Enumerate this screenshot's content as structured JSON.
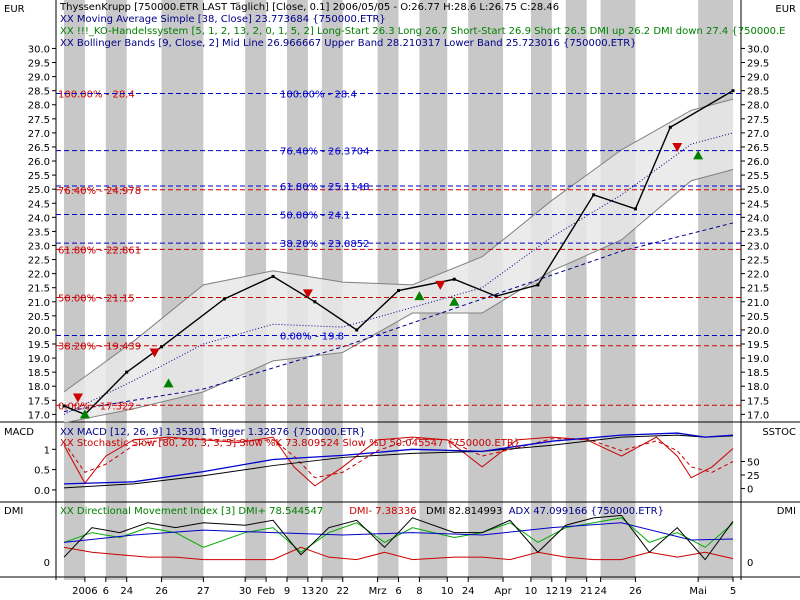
{
  "chart_data": {
    "type": "line",
    "instrument_line": "ThyssenKrupp [750000.ETR LAST Täglich] [Close, 0.1] 2006/05/05 - O:26.77 H:28.6 L:26.75 C:28.46",
    "currency_left": "EUR",
    "currency_right": "EUR",
    "price_panel": {
      "ylim": [
        16.8,
        30.3
      ],
      "y_ticks": [
        "17.0",
        "17.5",
        "18.0",
        "18.5",
        "19.0",
        "19.5",
        "20.0",
        "20.5",
        "21.0",
        "21.5",
        "22.0",
        "22.5",
        "23.0",
        "23.5",
        "24.0",
        "24.5",
        "25.0",
        "25.5",
        "26.0",
        "26.5",
        "27.0",
        "27.5",
        "28.0",
        "28.5",
        "29.0",
        "29.5",
        "30.0"
      ],
      "legend": [
        {
          "text": "XX Moving Average Simple [38, Close] 23.773684 {750000.ETR}",
          "color": "#00008b"
        },
        {
          "text": "XX !!!_KO-Handelssystem [5, 1, 2, 13, 2, 0, 1, 5, 2] Long-Start 26.3 Long 26.7 Short-Start 26.9 Short 26.5 DMI up 26.2 DMI down 27.4 {750000.E",
          "color": "#008000"
        },
        {
          "text": "XX Bollinger Bands [9, Close, 2] Mid Line 26.966667 Upper Band 28.210317 Lower Band 25.723016 {750000.ETR}",
          "color": "#00008b"
        }
      ],
      "close_series": {
        "name": "ThyssenKrupp",
        "x": [
          0,
          3,
          9,
          14,
          23,
          30,
          36,
          42,
          48,
          56,
          62,
          68,
          76,
          82,
          87,
          96
        ],
        "y": [
          17.3,
          17.0,
          18.5,
          19.4,
          21.1,
          21.9,
          21.0,
          20.0,
          21.4,
          21.8,
          21.2,
          21.6,
          24.8,
          24.3,
          27.2,
          28.5
        ]
      },
      "moving_average": {
        "x": [
          0,
          20,
          40,
          60,
          80,
          96
        ],
        "y": [
          17.1,
          17.9,
          19.4,
          21.1,
          22.8,
          23.8
        ]
      },
      "bollinger_mid": {
        "x": [
          0,
          10,
          20,
          30,
          40,
          50,
          60,
          70,
          80,
          90,
          96
        ],
        "y": [
          17.0,
          18.2,
          19.5,
          20.2,
          20.1,
          20.8,
          21.5,
          23.3,
          24.8,
          26.6,
          27.0
        ]
      },
      "bollinger_upper": {
        "x": [
          0,
          10,
          20,
          30,
          40,
          50,
          60,
          70,
          80,
          90,
          96
        ],
        "y": [
          17.8,
          19.6,
          21.6,
          22.1,
          21.7,
          21.6,
          22.6,
          24.6,
          26.4,
          27.8,
          28.2
        ]
      },
      "bollinger_lower": {
        "x": [
          0,
          10,
          20,
          30,
          40,
          50,
          60,
          70,
          80,
          90,
          96
        ],
        "y": [
          16.7,
          17.2,
          17.8,
          18.9,
          19.2,
          20.6,
          20.6,
          22.1,
          23.2,
          25.3,
          25.7
        ]
      },
      "fib_set_1": {
        "color": "#cc0000",
        "levels": [
          {
            "label": "100.00% - 28.4",
            "value": 28.4
          },
          {
            "label": "76.40% - 24.978",
            "value": 24.978
          },
          {
            "label": "61.80% - 22.861",
            "value": 22.861
          },
          {
            "label": "50.00% - 21.15",
            "value": 21.15
          },
          {
            "label": "38.20% - 19.439",
            "value": 19.439
          },
          {
            "label": "0.00% - 17.322",
            "value": 17.322
          }
        ]
      },
      "fib_set_2": {
        "color": "#0000cc",
        "levels": [
          {
            "label": "100.00% - 28.4",
            "value": 28.4
          },
          {
            "label": "76.40% - 26.3704",
            "value": 26.3704
          },
          {
            "label": "61.80% - 25.1148",
            "value": 25.1148
          },
          {
            "label": "50.00% - 24.1",
            "value": 24.1
          },
          {
            "label": "38.20% - 23.0852",
            "value": 23.0852
          },
          {
            "label": "0.00% - 19.8",
            "value": 19.8
          }
        ]
      },
      "signals": [
        {
          "x": 2,
          "y": 17.6,
          "kind": "short"
        },
        {
          "x": 3,
          "y": 17.0,
          "kind": "long"
        },
        {
          "x": 13,
          "y": 19.2,
          "kind": "short"
        },
        {
          "x": 15,
          "y": 18.1,
          "kind": "long"
        },
        {
          "x": 35,
          "y": 21.3,
          "kind": "short"
        },
        {
          "x": 51,
          "y": 21.2,
          "kind": "long"
        },
        {
          "x": 54,
          "y": 21.6,
          "kind": "short"
        },
        {
          "x": 56,
          "y": 21.0,
          "kind": "long"
        },
        {
          "x": 88,
          "y": 26.5,
          "kind": "short"
        },
        {
          "x": 91,
          "y": 26.2,
          "kind": "long"
        }
      ]
    },
    "macd_panel": {
      "label_left": "MACD",
      "label_right": "SSTOC",
      "legend": [
        {
          "text": "XX MACD [12, 26, 9] 1.35301 Trigger 1.32876 {750000.ETR}",
          "color": "#00008b"
        },
        {
          "text": "XX Stochastic Slow [80, 20, 3, 3, 5] Slow %K 73.809524 Slow %D 50.045547 {750000.ETR}",
          "color": "#cc0000"
        }
      ],
      "left_ticks": [
        "0.0",
        "0.5",
        "1"
      ],
      "ylim_left": [
        -0.1,
        1.5
      ],
      "right_ticks": [
        "50",
        "25",
        "0"
      ],
      "ylim_right": [
        -10,
        110
      ],
      "macd": {
        "x": [
          0,
          10,
          20,
          30,
          40,
          50,
          60,
          70,
          80,
          88,
          92,
          96
        ],
        "y": [
          0.15,
          0.2,
          0.45,
          0.75,
          0.85,
          1.0,
          0.95,
          1.2,
          1.35,
          1.4,
          1.3,
          1.35
        ]
      },
      "trigger": {
        "x": [
          0,
          10,
          20,
          30,
          40,
          50,
          60,
          70,
          80,
          88,
          92,
          96
        ],
        "y": [
          0.05,
          0.15,
          0.35,
          0.6,
          0.8,
          0.9,
          0.95,
          1.1,
          1.3,
          1.35,
          1.3,
          1.33
        ]
      },
      "stoch_k": {
        "x": [
          0,
          3,
          6,
          10,
          15,
          20,
          25,
          30,
          33,
          36,
          40,
          45,
          50,
          55,
          60,
          65,
          70,
          75,
          80,
          85,
          88,
          90,
          93,
          96
        ],
        "y": [
          80,
          10,
          60,
          90,
          95,
          90,
          85,
          95,
          40,
          5,
          40,
          90,
          95,
          90,
          40,
          90,
          95,
          90,
          60,
          95,
          60,
          20,
          40,
          74
        ]
      },
      "stoch_d": {
        "x": [
          0,
          3,
          6,
          10,
          15,
          20,
          25,
          30,
          33,
          36,
          40,
          45,
          50,
          55,
          60,
          65,
          70,
          75,
          80,
          85,
          88,
          90,
          93,
          96
        ],
        "y": [
          85,
          30,
          45,
          80,
          92,
          92,
          88,
          90,
          60,
          20,
          30,
          70,
          92,
          90,
          60,
          75,
          92,
          92,
          70,
          88,
          70,
          40,
          30,
          50
        ]
      }
    },
    "dmi_panel": {
      "label_left": "DMI",
      "label_right": "DMI",
      "legend": [
        {
          "text": "XX Directional Movement Index [3] DMI+ 78.544547",
          "color": "#008000"
        },
        {
          "text": "DMI- 7.38336",
          "color": "#cc0000"
        },
        {
          "text": "DMI 82.814993",
          "color": "#000000"
        },
        {
          "text": "ADX 47.099166 {750000.ETR}",
          "color": "#00008b"
        }
      ],
      "left_ticks": [
        "0"
      ],
      "right_ticks": [
        "0"
      ],
      "ylim": [
        -10,
        110
      ],
      "dmi_plus": {
        "x": [
          0,
          4,
          8,
          12,
          16,
          20,
          26,
          30,
          34,
          38,
          42,
          46,
          50,
          56,
          60,
          64,
          68,
          72,
          76,
          80,
          84,
          88,
          92,
          96
        ],
        "y": [
          40,
          60,
          50,
          70,
          60,
          30,
          60,
          70,
          20,
          60,
          80,
          40,
          70,
          50,
          60,
          80,
          40,
          70,
          80,
          90,
          40,
          60,
          30,
          79
        ]
      },
      "dmi_minus": {
        "x": [
          0,
          4,
          8,
          12,
          16,
          20,
          26,
          30,
          34,
          38,
          42,
          46,
          50,
          56,
          60,
          64,
          68,
          72,
          76,
          80,
          84,
          88,
          92,
          96
        ],
        "y": [
          30,
          20,
          15,
          10,
          10,
          5,
          5,
          5,
          30,
          10,
          5,
          20,
          5,
          10,
          10,
          5,
          20,
          10,
          5,
          5,
          20,
          10,
          20,
          7
        ]
      },
      "dmi": {
        "x": [
          0,
          4,
          8,
          12,
          16,
          20,
          26,
          30,
          34,
          38,
          42,
          46,
          50,
          56,
          60,
          64,
          68,
          72,
          76,
          80,
          84,
          88,
          92,
          96
        ],
        "y": [
          10,
          70,
          60,
          80,
          70,
          80,
          75,
          85,
          15,
          70,
          85,
          30,
          90,
          60,
          60,
          85,
          20,
          75,
          90,
          95,
          20,
          70,
          5,
          83
        ]
      },
      "adx": {
        "x": [
          0,
          10,
          20,
          30,
          40,
          50,
          60,
          70,
          80,
          90,
          96
        ],
        "y": [
          40,
          55,
          65,
          60,
          55,
          60,
          55,
          70,
          80,
          45,
          47
        ]
      }
    },
    "x_axis": {
      "count": 97,
      "labels": [
        {
          "i": 3,
          "text": "2006"
        },
        {
          "i": 6,
          "text": "6"
        },
        {
          "i": 9,
          "text": "24"
        },
        {
          "i": 14,
          "text": "26"
        },
        {
          "i": 20,
          "text": "27"
        },
        {
          "i": 26,
          "text": "30"
        },
        {
          "i": 29,
          "text": "Feb"
        },
        {
          "i": 32,
          "text": "9"
        },
        {
          "i": 35,
          "text": "13"
        },
        {
          "i": 37,
          "text": "20"
        },
        {
          "i": 40,
          "text": "22"
        },
        {
          "i": 45,
          "text": "Mrz"
        },
        {
          "i": 48,
          "text": "6"
        },
        {
          "i": 51,
          "text": "8"
        },
        {
          "i": 55,
          "text": "10"
        },
        {
          "i": 58,
          "text": "24"
        },
        {
          "i": 63,
          "text": "Apr"
        },
        {
          "i": 67,
          "text": "10"
        },
        {
          "i": 70,
          "text": "12"
        },
        {
          "i": 72,
          "text": "19"
        },
        {
          "i": 75,
          "text": "21"
        },
        {
          "i": 77,
          "text": "24"
        },
        {
          "i": 82,
          "text": "26"
        },
        {
          "i": 91,
          "text": "Mai"
        },
        {
          "i": 96,
          "text": "5"
        }
      ]
    },
    "colors": {
      "price": "#000000",
      "price_marker": "#00aa00",
      "ma": "#00008b",
      "boll_line": "#808080",
      "boll_fill": "#e8e8e8",
      "stripe": "#c8c8c8",
      "macd": "#0000cc",
      "trigger": "#000000",
      "stoch_k": "#cc0000",
      "stoch_d": "#cc0000",
      "dmi_plus": "#00aa00",
      "dmi_minus": "#cc0000",
      "dmi": "#000000",
      "adx": "#0000cc",
      "long_signal": "#008000",
      "short_signal": "#cc0000"
    }
  }
}
